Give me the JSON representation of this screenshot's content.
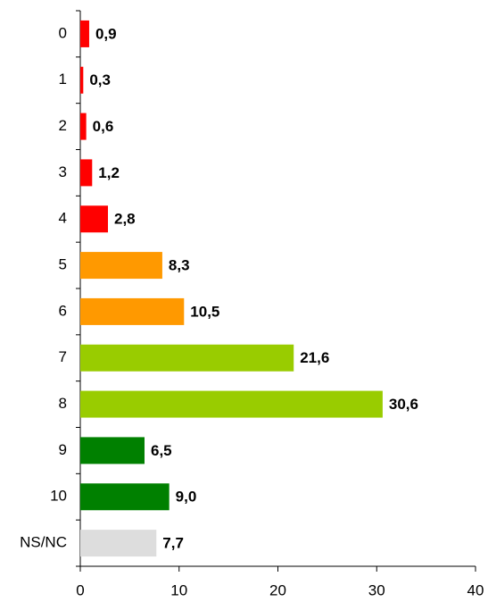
{
  "chart_data": {
    "type": "barh",
    "categories": [
      "0",
      "1",
      "2",
      "3",
      "4",
      "5",
      "6",
      "7",
      "8",
      "9",
      "10",
      "NS/NC"
    ],
    "values": [
      0.9,
      0.3,
      0.6,
      1.2,
      2.8,
      8.3,
      10.5,
      21.6,
      30.6,
      6.5,
      9.0,
      7.7
    ],
    "value_labels": [
      "0,9",
      "0,3",
      "0,6",
      "1,2",
      "2,8",
      "8,3",
      "10,5",
      "21,6",
      "30,6",
      "6,5",
      "9,0",
      "7,7"
    ],
    "colors": [
      "#ff0000",
      "#ff0000",
      "#ff0000",
      "#ff0000",
      "#ff0000",
      "#ff9900",
      "#ff9900",
      "#99cc00",
      "#99cc00",
      "#008000",
      "#008000",
      "#dddddd"
    ],
    "xlim": [
      0,
      40
    ],
    "xticks": [
      0,
      10,
      20,
      30,
      40
    ],
    "grid": false
  }
}
